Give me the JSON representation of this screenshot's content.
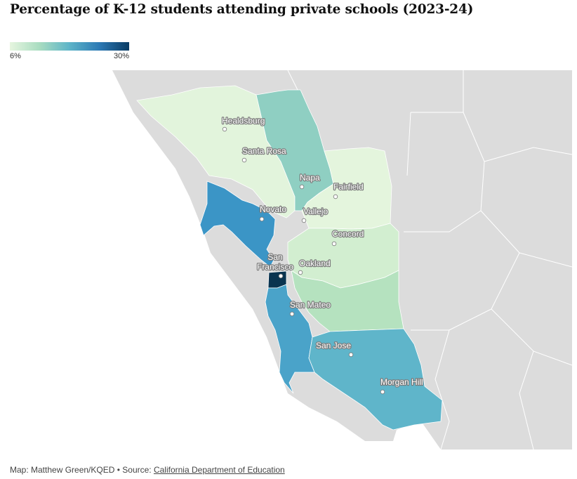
{
  "title": "Percentage of K-12 students attending private schools (2023-24)",
  "legend": {
    "min_label": "6%",
    "max_label": "30%",
    "colors": [
      "#e6f5df",
      "#a8dcc0",
      "#5db4c8",
      "#2d7ab5",
      "#0a3b64"
    ]
  },
  "cities": [
    {
      "name": "Healdsburg"
    },
    {
      "name": "Santa Rosa"
    },
    {
      "name": "Napa"
    },
    {
      "name": "Fairfield"
    },
    {
      "name": "Novato"
    },
    {
      "name": "Vallejo"
    },
    {
      "name": "Concord"
    },
    {
      "name": "San Francisco",
      "lines": [
        "San",
        "Francisco"
      ]
    },
    {
      "name": "Oakland"
    },
    {
      "name": "San Mateo"
    },
    {
      "name": "San Jose"
    },
    {
      "name": "Morgan Hill"
    }
  ],
  "counties": {
    "sonoma": {
      "color": "#e2f4dc"
    },
    "napa": {
      "color": "#8fcfc2"
    },
    "solano": {
      "color": "#e4f5dd"
    },
    "marin": {
      "color": "#3b95c6"
    },
    "contra_costa": {
      "color": "#d2eed0"
    },
    "alameda": {
      "color": "#b5e2bf"
    },
    "san_francisco": {
      "color": "#0a3450"
    },
    "san_mateo": {
      "color": "#4aa3c9"
    },
    "santa_clara": {
      "color": "#5fb5ca"
    }
  },
  "footer": {
    "prefix": "Map: Matthew Green/KQED • Source: ",
    "link_text": "California Department of Education"
  }
}
